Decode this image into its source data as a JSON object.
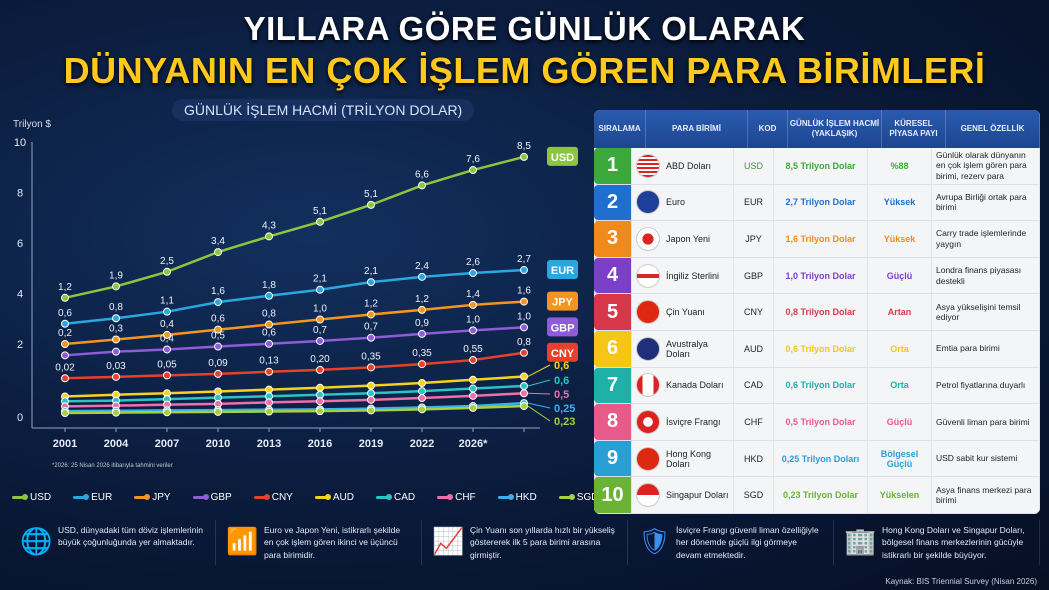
{
  "header": {
    "title_line1": "YILLARA GÖRE GÜNLÜK OLARAK",
    "title_line2": "DÜNYANIN EN ÇOK İŞLEM GÖREN PARA BİRİMLERİ"
  },
  "chart_data": {
    "type": "line",
    "title": "GÜNLÜK İŞLEM HACMİ (TRİLYON DOLAR)",
    "ylabel": "Trilyon $",
    "ylim": [
      0,
      10
    ],
    "y_ticks": [
      "0",
      "2",
      "4",
      "6",
      "8",
      "10"
    ],
    "x_ticks": [
      "2001",
      "2004",
      "2007",
      "2010",
      "2013",
      "2016",
      "2019",
      "2022",
      "2026*",
      ""
    ],
    "grid": false,
    "legend": "bottom",
    "footnote": "*2026: 25 Nisan 2026 itibarıyla tahmini veriler",
    "series": [
      {
        "name": "USD",
        "color": "#8cc63f",
        "badge": true,
        "values": [
          3.83,
          4.28,
          4.86,
          5.64,
          6.26,
          6.84,
          7.51,
          8.28,
          8.89,
          9.41
        ],
        "labels": [
          "1,2",
          "1,9",
          "2,5",
          "3,4",
          "4,3",
          "5,1",
          "5,1",
          "6,6",
          "7,6",
          "8,5"
        ]
      },
      {
        "name": "EUR",
        "color": "#29a8e0",
        "badge": true,
        "values": [
          2.8,
          3.02,
          3.28,
          3.66,
          3.91,
          4.15,
          4.45,
          4.66,
          4.81,
          4.93
        ],
        "labels": [
          "0,6",
          "0,8",
          "1,1",
          "1,6",
          "1,8",
          "2,1",
          "2,1",
          "2,4",
          "2,6",
          "2,7"
        ]
      },
      {
        "name": "JPY",
        "color": "#f7941d",
        "badge": true,
        "values": [
          2.0,
          2.18,
          2.36,
          2.57,
          2.77,
          2.97,
          3.17,
          3.35,
          3.55,
          3.68
        ],
        "labels": [
          "0,2",
          "0,3",
          "0,4",
          "0,6",
          "0,8",
          "1,0",
          "1,2",
          "1,2",
          "1,4",
          "1,6"
        ]
      },
      {
        "name": "GBP",
        "color": "#8e5cd9",
        "badge": true,
        "values": [
          1.69,
          1.79,
          1.85,
          1.93,
          2.01,
          2.12,
          2.25,
          2.4,
          2.54,
          2.66
        ],
        "labels": [
          "",
          "",
          "0,4",
          "0,5",
          "0,6",
          "0,7",
          "0,7",
          "0,9",
          "1,0",
          "1,0"
        ]
      },
      {
        "name": "CNY",
        "color": "#e8402a",
        "badge": true,
        "values": [
          1.06,
          1.1,
          1.14,
          1.18,
          1.24,
          1.29,
          1.36,
          1.45,
          1.56,
          1.76
        ],
        "labels": [
          "0,02",
          "0,03",
          "0,05",
          "0,09",
          "0,13",
          "0,20",
          "0,35",
          "0,35",
          "0,55",
          "0,8"
        ]
      },
      {
        "name": "AUD",
        "color": "#f5d31c",
        "badge": false,
        "end_label": "0,6",
        "values": [
          0.56,
          0.61,
          0.65,
          0.7,
          0.75,
          0.8,
          0.86,
          0.93,
          1.02,
          1.11
        ]
      },
      {
        "name": "CAD",
        "color": "#2bc4c4",
        "badge": false,
        "end_label": "0,6",
        "values": [
          0.43,
          0.45,
          0.49,
          0.53,
          0.57,
          0.61,
          0.65,
          0.71,
          0.78,
          0.85
        ]
      },
      {
        "name": "CHF",
        "color": "#f06eaa",
        "badge": false,
        "end_label": "0,5",
        "values": [
          0.29,
          0.31,
          0.34,
          0.36,
          0.4,
          0.43,
          0.47,
          0.52,
          0.58,
          0.65
        ]
      },
      {
        "name": "HKD",
        "color": "#3ab0f0",
        "badge": false,
        "end_label": "0,25",
        "values": [
          0.16,
          0.17,
          0.18,
          0.19,
          0.2,
          0.21,
          0.23,
          0.26,
          0.3,
          0.38
        ]
      },
      {
        "name": "SGD",
        "color": "#a6d13a",
        "badge": false,
        "end_label": "0,23",
        "values": [
          0.11,
          0.12,
          0.13,
          0.14,
          0.15,
          0.16,
          0.18,
          0.21,
          0.25,
          0.3
        ]
      }
    ]
  },
  "table": {
    "headers": [
      "SIRALAMA",
      "PARA BİRİMİ",
      "KOD",
      "GÜNLÜK İŞLEM HACMİ (YAKLAŞIK)",
      "KÜRESEL PİYASA PAYI",
      "GENEL ÖZELLİK"
    ],
    "rows": [
      {
        "rank": "1",
        "name": "ABD Doları",
        "code": "USD",
        "volume": "8,5 Trilyon Dolar",
        "share": "%88",
        "desc": "Günlük olarak dünyanın en çok işlem gören para birimi, rezerv para",
        "color": "#3aa83a",
        "flag": "us"
      },
      {
        "rank": "2",
        "name": "Euro",
        "code": "EUR",
        "volume": "2,7 Trilyon Dolar",
        "share": "Yüksek",
        "desc": "Avrupa Birliği ortak para birimi",
        "color": "#1f6fd1",
        "flag": "eu"
      },
      {
        "rank": "3",
        "name": "Japon Yeni",
        "code": "JPY",
        "volume": "1,6 Trilyon Dolar",
        "share": "Yüksek",
        "desc": "Carry trade işlemlerinde yaygın",
        "color": "#f08a1c",
        "flag": "jp"
      },
      {
        "rank": "4",
        "name": "İngiliz Sterlini",
        "code": "GBP",
        "volume": "1,0 Trilyon Dolar",
        "share": "Güçlü",
        "desc": "Londra finans piyasası destekli",
        "color": "#7b3fc9",
        "flag": "gb"
      },
      {
        "rank": "5",
        "name": "Çin Yuanı",
        "code": "CNY",
        "volume": "0,8 Trilyon Dolar",
        "share": "Artan",
        "desc": "Asya yükselişini temsil ediyor",
        "color": "#d6384a",
        "flag": "cn"
      },
      {
        "rank": "6",
        "name": "Avustralya Doları",
        "code": "AUD",
        "volume": "0,6 Trilyon Dolar",
        "share": "Orta",
        "desc": "Emtia para birimi",
        "color": "#f5c518",
        "flag": "au"
      },
      {
        "rank": "7",
        "name": "Kanada Doları",
        "code": "CAD",
        "volume": "0,6 Trilyon Dolar",
        "share": "Orta",
        "desc": "Petrol fiyatlarına duyarlı",
        "color": "#1fb0a8",
        "flag": "ca"
      },
      {
        "rank": "8",
        "name": "İsviçre Frangı",
        "code": "CHF",
        "volume": "0,5 Trilyon Dolar",
        "share": "Güçlü",
        "desc": "Güvenli liman para birimi",
        "color": "#e85a8a",
        "flag": "ch"
      },
      {
        "rank": "9",
        "name": "Hong Kong Doları",
        "code": "HKD",
        "volume": "0,25 Trilyon Doları",
        "share": "Bölgesel Güçlü",
        "desc": "USD sabit kur sistemi",
        "color": "#2a9fd6",
        "flag": "hk"
      },
      {
        "rank": "10",
        "name": "Singapur Doları",
        "code": "SGD",
        "volume": "0,23 Trilyon Dolar",
        "share": "Yükselen",
        "desc": "Asya finans merkezi para birimi",
        "color": "#6ab335",
        "flag": "sg"
      }
    ]
  },
  "facts": [
    {
      "icon": "globe-dollar-icon",
      "text": "USD, dünyadaki tüm döviz işlemlerinin büyük çoğunluğunda yer almaktadır."
    },
    {
      "icon": "bar-chart-up-icon",
      "text": "Euro ve Japon Yeni, istikrarlı şekilde en çok işlem gören ikinci ve üçüncü para birimidir."
    },
    {
      "icon": "red-growth-chart-icon",
      "text": "Çin Yuanı son yıllarda hızlı bir yükseliş göstererek ilk 5 para birimi arasına girmiştir."
    },
    {
      "icon": "shield-icon",
      "text": "İsviçre Frangı güvenli liman özelliğiyle her dönemde güçlü ilgi görmeye devam etmektedir."
    },
    {
      "icon": "buildings-icon",
      "text": "Hong Kong Doları ve Singapur Doları, bölgesel finans merkezlerinin gücüyle istikrarlı bir şekilde büyüyor."
    }
  ],
  "source": "Kaynak: BIS Triennial Survey (Nisan 2026)"
}
